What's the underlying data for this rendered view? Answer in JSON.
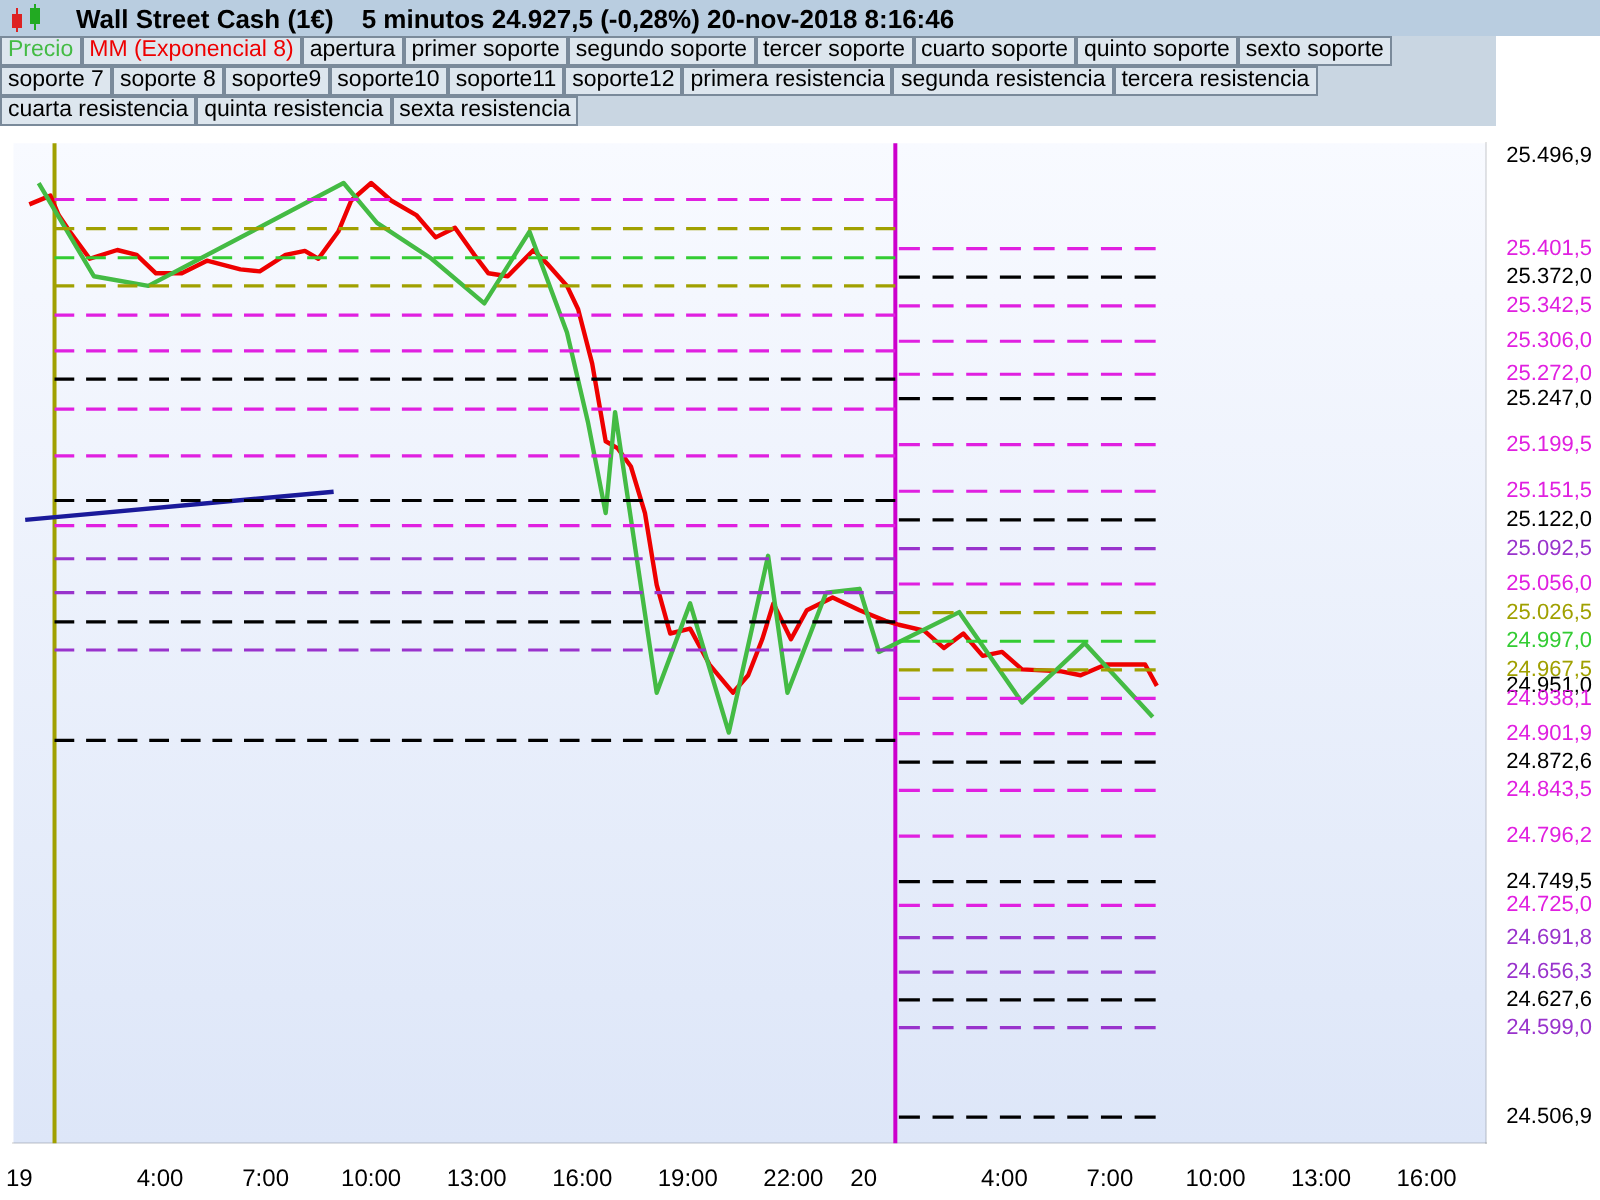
{
  "chart_data": {
    "type": "line",
    "title": "Wall Street Cash (1€)",
    "subtitle": "5 minutos   24.927,5 (-0,28%)   20-nov-2018 8:16:46",
    "legend": "top",
    "grid": false,
    "annotations": [
      "apertura",
      "primer soporte",
      "segundo soporte",
      "tercer soporte",
      "cuarto soporte",
      "quinto soporte",
      "sexto soporte",
      "soporte 7",
      "soporte 8",
      "soporte9",
      "soporte10",
      "soporte11",
      "soporte12",
      "primera resistencia",
      "segunda resistencia",
      "tercera resistencia",
      "cuarta resistencia",
      "quinta resistencia",
      "sexta resistencia"
    ],
    "xlim": [
      "2018-11-18T23:50",
      "2018-11-20T17:42"
    ],
    "xticks": [
      {
        "value": "2018-11-19T00:00",
        "label": "19"
      },
      {
        "value": "2018-11-19T04:00",
        "label": "4:00"
      },
      {
        "value": "2018-11-19T07:00",
        "label": "7:00"
      },
      {
        "value": "2018-11-19T10:00",
        "label": "10:00"
      },
      {
        "value": "2018-11-19T13:00",
        "label": "13:00"
      },
      {
        "value": "2018-11-19T16:00",
        "label": "16:00"
      },
      {
        "value": "2018-11-19T19:00",
        "label": "19:00"
      },
      {
        "value": "2018-11-19T22:00",
        "label": "22:00"
      },
      {
        "value": "2018-11-20T00:00",
        "label": "20"
      },
      {
        "value": "2018-11-20T04:00",
        "label": "4:00"
      },
      {
        "value": "2018-11-20T07:00",
        "label": "7:00"
      },
      {
        "value": "2018-11-20T10:00",
        "label": "10:00"
      },
      {
        "value": "2018-11-20T13:00",
        "label": "13:00"
      },
      {
        "value": "2018-11-20T16:00",
        "label": "16:00"
      }
    ],
    "ylim": [
      24480,
      25510
    ],
    "yticks": [
      {
        "value": 25496.9,
        "label": "25.496,9"
      },
      {
        "value": 25401.5,
        "label": "25.401,5"
      },
      {
        "value": 25372.0,
        "label": "25.372,0"
      },
      {
        "value": 25342.5,
        "label": "25.342,5"
      },
      {
        "value": 25306.0,
        "label": "25.306,0"
      },
      {
        "value": 25272.0,
        "label": "25.272,0"
      },
      {
        "value": 25247.0,
        "label": "25.247,0"
      },
      {
        "value": 25199.5,
        "label": "25.199,5"
      },
      {
        "value": 25151.5,
        "label": "25.151,5"
      },
      {
        "value": 25122.0,
        "label": "25.122,0"
      },
      {
        "value": 25092.5,
        "label": "25.092,5"
      },
      {
        "value": 25056.0,
        "label": "25.056,0"
      },
      {
        "value": 25026.5,
        "label": "25.026,5"
      },
      {
        "value": 24997.0,
        "label": "24.997,0"
      },
      {
        "value": 24967.5,
        "label": "24.967,5"
      },
      {
        "value": 24951.0,
        "label": "24.951,0"
      },
      {
        "value": 24938.1,
        "label": "24.938,1"
      },
      {
        "value": 24901.9,
        "label": "24.901,9"
      },
      {
        "value": 24872.6,
        "label": "24.872,6"
      },
      {
        "value": 24843.5,
        "label": "24.843,5"
      },
      {
        "value": 24796.2,
        "label": "24.796,2"
      },
      {
        "value": 24749.5,
        "label": "24.749,5"
      },
      {
        "value": 24725.0,
        "label": "24.725,0"
      },
      {
        "value": 24691.8,
        "label": "24.691,8"
      },
      {
        "value": 24656.3,
        "label": "24.656,3"
      },
      {
        "value": 24627.6,
        "label": "24.627,6"
      },
      {
        "value": 24599.0,
        "label": "24.599,0"
      },
      {
        "value": 24506.9,
        "label": "24.506,9"
      }
    ],
    "ref_lines": [
      {
        "axis": "x",
        "value": "2018-11-19T01:00",
        "color": "#a0a000",
        "line_style": "solid"
      },
      {
        "axis": "x",
        "value": "2018-11-20T00:54",
        "color": "#cc00cc",
        "line_style": "solid"
      }
    ],
    "series": [
      {
        "name": "Precio",
        "color": "#44bb44",
        "line_style": "solid",
        "x": [
          "2018-11-19T00:33",
          "2018-11-19T02:07",
          "2018-11-19T03:40",
          "2018-11-19T09:13",
          "2018-11-19T10:10",
          "2018-11-19T11:43",
          "2018-11-19T13:13",
          "2018-11-19T14:30",
          "2018-11-19T15:34",
          "2018-11-19T16:10",
          "2018-11-19T16:40",
          "2018-11-19T16:56",
          "2018-11-19T18:07",
          "2018-11-19T19:04",
          "2018-11-19T20:10",
          "2018-11-19T21:17",
          "2018-11-19T21:50",
          "2018-11-19T22:56",
          "2018-11-19T23:53",
          "2018-11-20T00:26",
          "2018-11-20T02:43",
          "2018-11-20T04:30",
          "2018-11-20T06:17",
          "2018-11-20T08:13"
        ],
        "values": [
          25469,
          25373,
          25363,
          25469,
          25428,
          25391,
          25345,
          25419,
          25315,
          25222,
          25129,
          25233,
          24944,
          25036,
          24903,
          25085,
          24944,
          25047,
          25051,
          24986,
          25027,
          24934,
          24995,
          24919
        ]
      },
      {
        "name": "MM (Exponencial 8)",
        "color": "#ee0000",
        "line_style": "solid",
        "x": [
          "2018-11-19T00:17",
          "2018-11-19T00:53",
          "2018-11-19T01:07",
          "2018-11-19T01:26",
          "2018-11-19T02:00",
          "2018-11-19T02:47",
          "2018-11-19T03:20",
          "2018-11-19T03:53",
          "2018-11-19T04:37",
          "2018-11-19T05:20",
          "2018-11-19T06:17",
          "2018-11-19T06:50",
          "2018-11-19T07:34",
          "2018-11-19T08:07",
          "2018-11-19T08:30",
          "2018-11-19T09:04",
          "2018-11-19T09:26",
          "2018-11-19T10:00",
          "2018-11-19T10:34",
          "2018-11-19T11:17",
          "2018-11-19T11:50",
          "2018-11-19T12:23",
          "2018-11-19T12:56",
          "2018-11-19T13:20",
          "2018-11-19T13:53",
          "2018-11-19T14:37",
          "2018-11-19T15:00",
          "2018-11-19T15:34",
          "2018-11-19T15:53",
          "2018-11-19T16:17",
          "2018-11-19T16:40",
          "2018-11-19T17:00",
          "2018-11-19T17:23",
          "2018-11-19T17:47",
          "2018-11-19T18:07",
          "2018-11-19T18:30",
          "2018-11-19T19:04",
          "2018-11-19T19:37",
          "2018-11-19T20:17",
          "2018-11-19T20:43",
          "2018-11-19T21:07",
          "2018-11-19T21:26",
          "2018-11-19T21:56",
          "2018-11-19T22:23",
          "2018-11-19T23:07",
          "2018-11-19T23:53",
          "2018-11-20T00:37",
          "2018-11-20T01:00",
          "2018-11-20T01:43",
          "2018-11-20T02:17",
          "2018-11-20T02:50",
          "2018-11-20T03:23",
          "2018-11-20T03:56",
          "2018-11-20T04:30",
          "2018-11-20T05:37",
          "2018-11-20T06:10",
          "2018-11-20T06:53",
          "2018-11-20T08:00",
          "2018-11-20T08:20"
        ],
        "values": [
          25447,
          25456,
          25436,
          25419,
          25391,
          25400,
          25395,
          25376,
          25376,
          25389,
          25380,
          25378,
          25395,
          25399,
          25391,
          25419,
          25451,
          25469,
          25451,
          25436,
          25413,
          25423,
          25395,
          25376,
          25373,
          25400,
          25386,
          25363,
          25339,
          25283,
          25203,
          25196,
          25177,
          25129,
          25055,
          25005,
          25010,
          24973,
          24944,
          24962,
          24999,
          25036,
          24999,
          25029,
          25042,
          25029,
          25018,
          25014,
          25008,
          24990,
          25005,
          24982,
          24986,
          24968,
          24966,
          24962,
          24973,
          24973,
          24951
        ]
      },
      {
        "color": "#1a1a9a",
        "line_style": "solid",
        "x": [
          "2018-11-19T00:10",
          "2018-11-19T08:56"
        ],
        "values": [
          25122,
          25151
        ]
      },
      {
        "color": "#e020e0",
        "line_style": "dashed",
        "x": [
          "2018-11-19T01:00",
          "2018-11-20T00:54"
        ],
        "values": [
          25452,
          25452
        ]
      },
      {
        "color": "#a0a000",
        "line_style": "dashed",
        "x": [
          "2018-11-19T01:00",
          "2018-11-20T00:54"
        ],
        "values": [
          25422,
          25422
        ]
      },
      {
        "color": "#33cc33",
        "line_style": "dashed",
        "x": [
          "2018-11-19T01:00",
          "2018-11-20T00:54"
        ],
        "values": [
          25392,
          25392
        ]
      },
      {
        "color": "#a0a000",
        "line_style": "dashed",
        "x": [
          "2018-11-19T01:00",
          "2018-11-20T00:54"
        ],
        "values": [
          25363,
          25363
        ]
      },
      {
        "color": "#e020e0",
        "line_style": "dashed",
        "x": [
          "2018-11-19T01:00",
          "2018-11-20T00:54"
        ],
        "values": [
          25333,
          25333
        ]
      },
      {
        "color": "#e020e0",
        "line_style": "dashed",
        "x": [
          "2018-11-19T01:00",
          "2018-11-20T00:54"
        ],
        "values": [
          25296,
          25296
        ]
      },
      {
        "color": "#000000",
        "line_style": "dashed",
        "x": [
          "2018-11-19T01:00",
          "2018-11-20T00:54"
        ],
        "values": [
          25267,
          25267
        ]
      },
      {
        "color": "#e020e0",
        "line_style": "dashed",
        "x": [
          "2018-11-19T01:00",
          "2018-11-20T00:54"
        ],
        "values": [
          25236,
          25236
        ]
      },
      {
        "color": "#e020e0",
        "line_style": "dashed",
        "x": [
          "2018-11-19T01:00",
          "2018-11-20T00:54"
        ],
        "values": [
          25188,
          25188
        ]
      },
      {
        "color": "#000000",
        "line_style": "dashed",
        "x": [
          "2018-11-19T01:00",
          "2018-11-20T00:54"
        ],
        "values": [
          25142,
          25142
        ]
      },
      {
        "color": "#e020e0",
        "line_style": "dashed",
        "x": [
          "2018-11-19T01:00",
          "2018-11-20T00:54"
        ],
        "values": [
          25116,
          25116
        ]
      },
      {
        "color": "#9933cc",
        "line_style": "dashed",
        "x": [
          "2018-11-19T01:00",
          "2018-11-20T00:54"
        ],
        "values": [
          25082,
          25082
        ]
      },
      {
        "color": "#9933cc",
        "line_style": "dashed",
        "x": [
          "2018-11-19T01:00",
          "2018-11-20T00:54"
        ],
        "values": [
          25047,
          25047
        ]
      },
      {
        "color": "#000000",
        "line_style": "dashed",
        "x": [
          "2018-11-19T01:00",
          "2018-11-20T00:54"
        ],
        "values": [
          25017,
          25017
        ]
      },
      {
        "color": "#9933cc",
        "line_style": "dashed",
        "x": [
          "2018-11-19T01:00",
          "2018-11-20T00:54"
        ],
        "values": [
          24988,
          24988
        ]
      },
      {
        "color": "#000000",
        "line_style": "dashed",
        "x": [
          "2018-11-19T01:00",
          "2018-11-20T00:54"
        ],
        "values": [
          24895,
          24895
        ]
      },
      {
        "color": "#e020e0",
        "line_style": "dashed",
        "x": [
          "2018-11-20T01:00",
          "2018-11-20T08:18"
        ],
        "values": [
          25401.5,
          25401.5
        ]
      },
      {
        "color": "#000000",
        "line_style": "dashed",
        "x": [
          "2018-11-20T01:00",
          "2018-11-20T08:18"
        ],
        "values": [
          25372.0,
          25372.0
        ]
      },
      {
        "color": "#e020e0",
        "line_style": "dashed",
        "x": [
          "2018-11-20T01:00",
          "2018-11-20T08:18"
        ],
        "values": [
          25342.5,
          25342.5
        ]
      },
      {
        "color": "#e020e0",
        "line_style": "dashed",
        "x": [
          "2018-11-20T01:00",
          "2018-11-20T08:18"
        ],
        "values": [
          25306.0,
          25306.0
        ]
      },
      {
        "color": "#e020e0",
        "line_style": "dashed",
        "x": [
          "2018-11-20T01:00",
          "2018-11-20T08:18"
        ],
        "values": [
          25272.0,
          25272.0
        ]
      },
      {
        "color": "#000000",
        "line_style": "dashed",
        "x": [
          "2018-11-20T01:00",
          "2018-11-20T08:18"
        ],
        "values": [
          25247.0,
          25247.0
        ]
      },
      {
        "color": "#e020e0",
        "line_style": "dashed",
        "x": [
          "2018-11-20T01:00",
          "2018-11-20T08:18"
        ],
        "values": [
          25199.5,
          25199.5
        ]
      },
      {
        "color": "#e020e0",
        "line_style": "dashed",
        "x": [
          "2018-11-20T01:00",
          "2018-11-20T08:18"
        ],
        "values": [
          25151.5,
          25151.5
        ]
      },
      {
        "color": "#000000",
        "line_style": "dashed",
        "x": [
          "2018-11-20T01:00",
          "2018-11-20T08:18"
        ],
        "values": [
          25122.0,
          25122.0
        ]
      },
      {
        "color": "#9933cc",
        "line_style": "dashed",
        "x": [
          "2018-11-20T01:00",
          "2018-11-20T08:18"
        ],
        "values": [
          25092.5,
          25092.5
        ]
      },
      {
        "color": "#e020e0",
        "line_style": "dashed",
        "x": [
          "2018-11-20T01:00",
          "2018-11-20T08:18"
        ],
        "values": [
          25056.0,
          25056.0
        ]
      },
      {
        "color": "#a0a000",
        "line_style": "dashed",
        "x": [
          "2018-11-20T01:00",
          "2018-11-20T08:18"
        ],
        "values": [
          25026.5,
          25026.5
        ]
      },
      {
        "color": "#33cc33",
        "line_style": "dashed",
        "x": [
          "2018-11-20T01:00",
          "2018-11-20T08:18"
        ],
        "values": [
          24997.0,
          24997.0
        ]
      },
      {
        "color": "#a0a000",
        "line_style": "dashed",
        "x": [
          "2018-11-20T01:00",
          "2018-11-20T08:18"
        ],
        "values": [
          24967.5,
          24967.5
        ]
      },
      {
        "color": "#e020e0",
        "line_style": "dashed",
        "x": [
          "2018-11-20T01:00",
          "2018-11-20T08:18"
        ],
        "values": [
          24938.1,
          24938.1
        ]
      },
      {
        "color": "#e020e0",
        "line_style": "dashed",
        "x": [
          "2018-11-20T01:00",
          "2018-11-20T08:18"
        ],
        "values": [
          24901.9,
          24901.9
        ]
      },
      {
        "color": "#000000",
        "line_style": "dashed",
        "x": [
          "2018-11-20T01:00",
          "2018-11-20T08:18"
        ],
        "values": [
          24872.6,
          24872.6
        ]
      },
      {
        "color": "#e020e0",
        "line_style": "dashed",
        "x": [
          "2018-11-20T01:00",
          "2018-11-20T08:18"
        ],
        "values": [
          24843.5,
          24843.5
        ]
      },
      {
        "color": "#e020e0",
        "line_style": "dashed",
        "x": [
          "2018-11-20T01:00",
          "2018-11-20T08:18"
        ],
        "values": [
          24796.2,
          24796.2
        ]
      },
      {
        "color": "#000000",
        "line_style": "dashed",
        "x": [
          "2018-11-20T01:00",
          "2018-11-20T08:18"
        ],
        "values": [
          24749.5,
          24749.5
        ]
      },
      {
        "color": "#e020e0",
        "line_style": "dashed",
        "x": [
          "2018-11-20T01:00",
          "2018-11-20T08:18"
        ],
        "values": [
          24725.0,
          24725.0
        ]
      },
      {
        "color": "#9933cc",
        "line_style": "dashed",
        "x": [
          "2018-11-20T01:00",
          "2018-11-20T08:18"
        ],
        "values": [
          24691.8,
          24691.8
        ]
      },
      {
        "color": "#9933cc",
        "line_style": "dashed",
        "x": [
          "2018-11-20T01:00",
          "2018-11-20T08:18"
        ],
        "values": [
          24656.3,
          24656.3
        ]
      },
      {
        "color": "#000000",
        "line_style": "dashed",
        "x": [
          "2018-11-20T01:00",
          "2018-11-20T08:18"
        ],
        "values": [
          24627.6,
          24627.6
        ]
      },
      {
        "color": "#9933cc",
        "line_style": "dashed",
        "x": [
          "2018-11-20T01:00",
          "2018-11-20T08:18"
        ],
        "values": [
          24599.0,
          24599.0
        ]
      },
      {
        "color": "#000000",
        "line_style": "dashed",
        "x": [
          "2018-11-20T01:00",
          "2018-11-20T08:18"
        ],
        "values": [
          24506.9,
          24506.9
        ]
      }
    ]
  }
}
